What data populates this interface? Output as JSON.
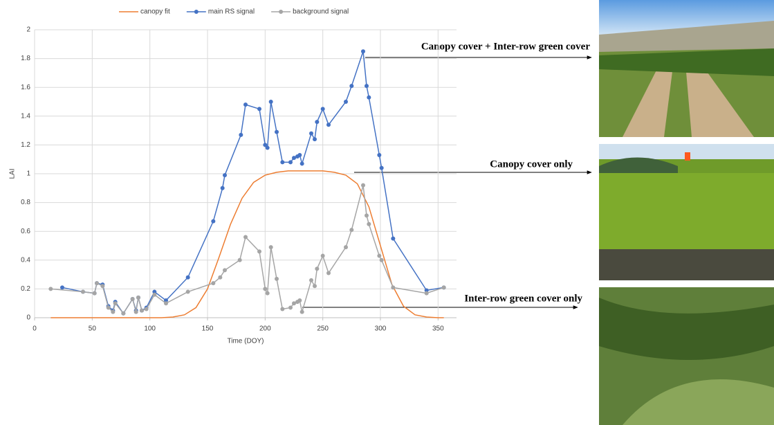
{
  "chart_data": {
    "type": "line",
    "x_label": "Time (DOY)",
    "y_label": "LAI",
    "xlim": [
      0,
      366
    ],
    "ylim": [
      0,
      2
    ],
    "xticks": [
      0,
      50,
      100,
      150,
      200,
      250,
      300,
      350
    ],
    "yticks": [
      0,
      0.2,
      0.4,
      0.6,
      0.8,
      1,
      1.2,
      1.4,
      1.6,
      1.8,
      2
    ],
    "grid": true,
    "legend": "top",
    "series": [
      {
        "name": "canopy fit",
        "color": "#ed7d31",
        "marker": false,
        "x": [
          14,
          30,
          50,
          70,
          90,
          110,
          120,
          130,
          140,
          150,
          160,
          170,
          180,
          190,
          200,
          210,
          220,
          230,
          240,
          250,
          260,
          270,
          280,
          290,
          300,
          310,
          320,
          330,
          340,
          350,
          355
        ],
        "values": [
          0,
          0,
          0,
          0,
          0,
          0,
          0.005,
          0.02,
          0.07,
          0.2,
          0.42,
          0.65,
          0.83,
          0.94,
          0.99,
          1.01,
          1.02,
          1.02,
          1.02,
          1.02,
          1.01,
          0.99,
          0.93,
          0.77,
          0.5,
          0.23,
          0.08,
          0.02,
          0.005,
          0,
          0
        ]
      },
      {
        "name": "main RS signal",
        "color": "#4472c4",
        "marker": true,
        "x": [
          24,
          42,
          52,
          54,
          59,
          64,
          68,
          70,
          77,
          85,
          88,
          90,
          93,
          97,
          104,
          114,
          133,
          155,
          163,
          165,
          179,
          183,
          195,
          200,
          202,
          205,
          210,
          215,
          222,
          225,
          228,
          230,
          232,
          240,
          243,
          245,
          250,
          255,
          270,
          275,
          285,
          288,
          290,
          299,
          301,
          311,
          340,
          355
        ],
        "values": [
          0.21,
          0.18,
          0.17,
          0.24,
          0.23,
          0.08,
          0.05,
          0.11,
          0.03,
          0.13,
          0.05,
          0.14,
          0.05,
          0.07,
          0.18,
          0.12,
          0.28,
          0.67,
          0.9,
          0.99,
          1.27,
          1.48,
          1.45,
          1.2,
          1.18,
          1.5,
          1.29,
          1.08,
          1.08,
          1.11,
          1.12,
          1.13,
          1.07,
          1.28,
          1.24,
          1.36,
          1.45,
          1.34,
          1.5,
          1.61,
          1.85,
          1.61,
          1.53,
          1.13,
          1.04,
          0.55,
          0.19,
          0.21
        ]
      },
      {
        "name": "background signal",
        "color": "#a5a5a5",
        "marker": true,
        "x": [
          14,
          42,
          52,
          54,
          59,
          64,
          68,
          70,
          77,
          85,
          88,
          90,
          93,
          97,
          104,
          114,
          133,
          155,
          161,
          165,
          178,
          183,
          195,
          200,
          202,
          205,
          210,
          215,
          222,
          225,
          228,
          230,
          232,
          240,
          243,
          245,
          250,
          255,
          270,
          275,
          285,
          288,
          290,
          299,
          301,
          311,
          340,
          355
        ],
        "values": [
          0.2,
          0.18,
          0.17,
          0.24,
          0.22,
          0.07,
          0.04,
          0.1,
          0.03,
          0.13,
          0.04,
          0.14,
          0.05,
          0.06,
          0.16,
          0.1,
          0.18,
          0.24,
          0.28,
          0.33,
          0.4,
          0.56,
          0.46,
          0.2,
          0.17,
          0.49,
          0.27,
          0.06,
          0.07,
          0.1,
          0.11,
          0.12,
          0.04,
          0.26,
          0.22,
          0.34,
          0.43,
          0.31,
          0.49,
          0.61,
          0.92,
          0.71,
          0.65,
          0.43,
          0.4,
          0.21,
          0.17,
          0.21
        ]
      }
    ],
    "annotations": [
      "Canopy cover + Inter-row green cover",
      "Canopy cover only",
      "Inter-row green cover only"
    ]
  }
}
